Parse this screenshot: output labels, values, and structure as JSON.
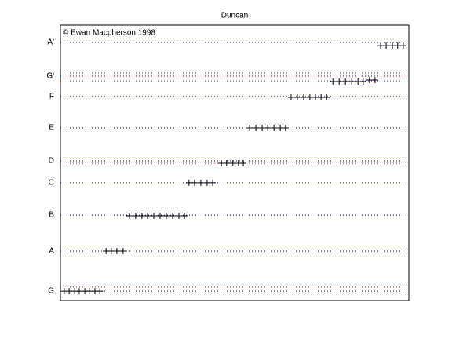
{
  "chart_data": {
    "type": "scatter",
    "title": "Duncan",
    "annotation": "© Ewan Macpherson 1998",
    "xlim": [
      0,
      100
    ],
    "ylim": [
      0,
      1560
    ],
    "yticks": [
      {
        "value": 53,
        "label": "G"
      },
      {
        "value": 280,
        "label": "A"
      },
      {
        "value": 484,
        "label": "B"
      },
      {
        "value": 667,
        "label": "C"
      },
      {
        "value": 791,
        "label": "D"
      },
      {
        "value": 978,
        "label": "E"
      },
      {
        "value": 1156,
        "label": "F"
      },
      {
        "value": 1271,
        "label": "G'"
      },
      {
        "value": 1462,
        "label": "A'"
      }
    ],
    "grid": true,
    "grid_color": "#0000ff",
    "hlines": [
      {
        "value": 76,
        "color": "#ff0000"
      },
      {
        "value": 778,
        "color": "#ff0000"
      },
      {
        "value": 1289,
        "color": "#ff0000"
      },
      {
        "value": 1244,
        "color": "#ff0000"
      }
    ],
    "series": [
      {
        "color": "#000000",
        "x": [
          1.1,
          2.5,
          4.1,
          5.4,
          7.0,
          8.3,
          9.9,
          11.3,
          13.1,
          14.6,
          16.2,
          18.0,
          19.8,
          21.6,
          23.4,
          25.0,
          26.8,
          28.6,
          30.4,
          32.2,
          34.0,
          35.6,
          36.9,
          38.5,
          40.3,
          42.1,
          43.7,
          46.2,
          47.7,
          49.5,
          51.1,
          52.5,
          54.3,
          56.1,
          57.9,
          59.5,
          61.3,
          63.1,
          64.6,
          66.2,
          68.0,
          69.8,
          71.6,
          73.2,
          74.8,
          76.4,
          78.2,
          80.0,
          81.8,
          83.6,
          85.4,
          86.9,
          88.7,
          90.3,
          91.9,
          93.5,
          95.3,
          96.8,
          98.4
        ],
        "values": [
          53,
          53,
          53,
          53,
          53,
          53,
          53,
          53,
          280,
          280,
          280,
          280,
          480,
          480,
          480,
          480,
          480,
          480,
          480,
          480,
          480,
          480,
          667,
          667,
          667,
          667,
          667,
          778,
          778,
          778,
          778,
          778,
          978,
          978,
          978,
          978,
          978,
          978,
          978,
          1151,
          1151,
          1151,
          1151,
          1151,
          1151,
          1151,
          1240,
          1240,
          1240,
          1240,
          1240,
          1240,
          1249,
          1249,
          1444,
          1444,
          1444,
          1444,
          1444
        ]
      }
    ]
  }
}
